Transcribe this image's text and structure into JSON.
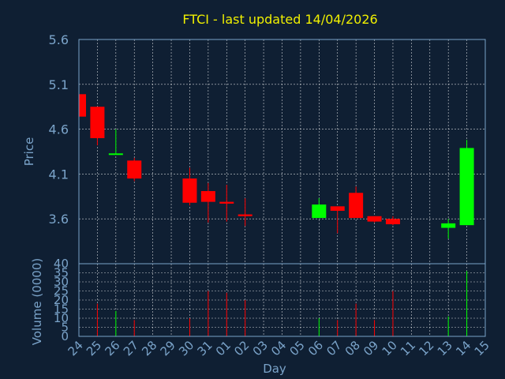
{
  "chart_data": [
    {
      "type": "candlestick",
      "title": "FTCI - last updated 14/04/2026",
      "ylabel": "Price",
      "ylim": [
        3.1,
        5.6
      ],
      "yticks": [
        "5.6",
        "5.1",
        "4.6",
        "4.1",
        "3.6"
      ],
      "grid": true,
      "colors": {
        "up": "#00ff00",
        "down": "#ff0000",
        "grid": "#ffffff",
        "axis": "#7aa3c9",
        "title": "#f0f000",
        "background": "#0f1f33"
      },
      "candles": [
        {
          "day": "24",
          "open": 4.99,
          "high": 4.99,
          "low": 4.74,
          "close": 4.74
        },
        {
          "day": "25",
          "open": 4.85,
          "high": 4.85,
          "low": 4.42,
          "close": 4.5
        },
        {
          "day": "26",
          "open": 4.32,
          "high": 4.6,
          "low": 4.32,
          "close": 4.33
        },
        {
          "day": "27",
          "open": 4.25,
          "high": 4.28,
          "low": 4.02,
          "close": 4.05
        },
        {
          "day": "30",
          "open": 4.05,
          "high": 4.17,
          "low": 3.75,
          "close": 3.78
        },
        {
          "day": "31",
          "open": 3.91,
          "high": 4.0,
          "low": 3.56,
          "close": 3.79
        },
        {
          "day": "01",
          "open": 3.79,
          "high": 3.98,
          "low": 3.57,
          "close": 3.77
        },
        {
          "day": "02",
          "open": 3.65,
          "high": 3.83,
          "low": 3.52,
          "close": 3.63
        },
        {
          "day": "06",
          "open": 3.61,
          "high": 3.83,
          "low": 3.61,
          "close": 3.76
        },
        {
          "day": "07",
          "open": 3.74,
          "high": 3.74,
          "low": 3.44,
          "close": 3.69
        },
        {
          "day": "08",
          "open": 3.89,
          "high": 3.96,
          "low": 3.61,
          "close": 3.61
        },
        {
          "day": "09",
          "open": 3.63,
          "high": 3.63,
          "low": 3.56,
          "close": 3.57
        },
        {
          "day": "10",
          "open": 3.6,
          "high": 3.63,
          "low": 3.53,
          "close": 3.54
        },
        {
          "day": "13",
          "open": 3.5,
          "high": 3.6,
          "low": 3.38,
          "close": 3.55
        },
        {
          "day": "14",
          "open": 3.53,
          "high": 4.48,
          "low": 3.53,
          "close": 4.39
        }
      ]
    },
    {
      "type": "bar",
      "ylabel": "Volume (0000)",
      "xlabel": "Day",
      "ylim": [
        0,
        40
      ],
      "yticks": [
        "40",
        "35",
        "30",
        "25",
        "20",
        "15",
        "10",
        "5",
        "0"
      ],
      "categories": [
        "24",
        "25",
        "26",
        "27",
        "28",
        "29",
        "30",
        "31",
        "01",
        "02",
        "03",
        "04",
        "05",
        "06",
        "07",
        "08",
        "09",
        "10",
        "11",
        "12",
        "13",
        "14",
        "15"
      ],
      "values": [
        0,
        18,
        14,
        9,
        0,
        0,
        10,
        25,
        24,
        20,
        0,
        0,
        0,
        10,
        9,
        18,
        9,
        25,
        0,
        0,
        11,
        36,
        0
      ],
      "bar_colors": [
        "#ff0000",
        "#ff0000",
        "#00ff00",
        "#ff0000",
        "#ff0000",
        "#ff0000",
        "#ff0000",
        "#ff0000",
        "#ff0000",
        "#ff0000",
        "#ff0000",
        "#ff0000",
        "#ff0000",
        "#00ff00",
        "#ff0000",
        "#ff0000",
        "#ff0000",
        "#ff0000",
        "#ff0000",
        "#ff0000",
        "#00ff00",
        "#00ff00",
        "#ff0000"
      ]
    }
  ]
}
